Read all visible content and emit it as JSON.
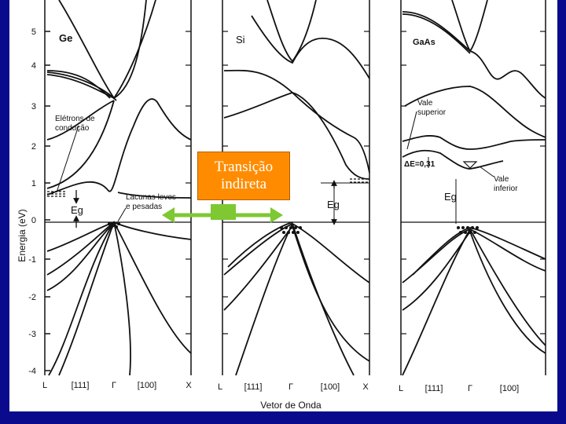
{
  "colors": {
    "background": "#0a0a8c",
    "callout": "#ff8c00",
    "arrow": "#7ec832"
  },
  "y_axis": {
    "label": "Energia (eV)",
    "ticks": [
      "5",
      "4",
      "3",
      "2",
      "1",
      "0",
      "-1",
      "-2",
      "-3",
      "-4"
    ]
  },
  "panels": [
    {
      "title": "Ge",
      "ticks": [
        "L",
        "[111]",
        "Γ",
        "[100]",
        "X"
      ]
    },
    {
      "title": "Si",
      "ticks": [
        "L",
        "[111]",
        "Γ",
        "[100]",
        "X"
      ]
    },
    {
      "title": "GaAs",
      "ticks": [
        "L",
        "[111]",
        "Γ",
        "[100]"
      ]
    }
  ],
  "annotations": {
    "electrons_l1": "Elétrons de",
    "electrons_l2": "condução",
    "holes_l1": "Lacunas leves",
    "holes_l2": "e pesadas",
    "eg": "Eg",
    "upper_valley_l1": "Vale",
    "upper_valley_l2": "superior",
    "lower_valley_l1": "Vale",
    "lower_valley_l2": "inferior",
    "delta_e": "ΔE=0,31"
  },
  "callout": {
    "line1": "Transição",
    "line2": "indireta"
  },
  "x_axis_label": "Vetor de Onda"
}
